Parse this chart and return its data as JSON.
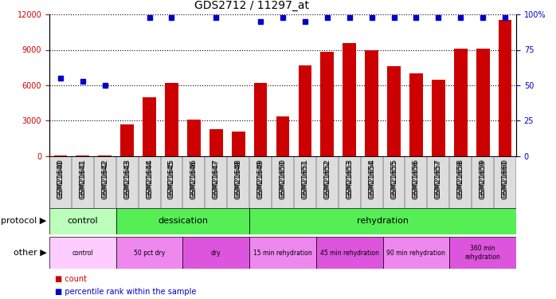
{
  "title": "GDS2712 / 11297_at",
  "samples": [
    "GSM21640",
    "GSM21641",
    "GSM21642",
    "GSM21643",
    "GSM21644",
    "GSM21645",
    "GSM21646",
    "GSM21647",
    "GSM21648",
    "GSM21649",
    "GSM21650",
    "GSM21651",
    "GSM21652",
    "GSM21653",
    "GSM21654",
    "GSM21655",
    "GSM21656",
    "GSM21657",
    "GSM21658",
    "GSM21659",
    "GSM21660"
  ],
  "counts": [
    60,
    80,
    70,
    2700,
    5000,
    6200,
    3100,
    2300,
    2100,
    6200,
    3400,
    7700,
    8800,
    9600,
    9000,
    7600,
    7000,
    6500,
    9100,
    9100,
    11500
  ],
  "pct_x": [
    0,
    1,
    2,
    4,
    5,
    7,
    9,
    10,
    11,
    12,
    13,
    14,
    15,
    16,
    17,
    18,
    19,
    20
  ],
  "pct_y": [
    55,
    53,
    50,
    98,
    98,
    98,
    95,
    98,
    95,
    98,
    98,
    98,
    98,
    98,
    98,
    98,
    98,
    98
  ],
  "bar_color": "#cc0000",
  "dot_color": "#0000cc",
  "ylim_left": [
    0,
    12000
  ],
  "ylim_right": [
    0,
    100
  ],
  "yticks_left": [
    0,
    3000,
    6000,
    9000,
    12000
  ],
  "yticks_right": [
    0,
    25,
    50,
    75,
    100
  ],
  "protocol_groups": [
    {
      "label": "control",
      "start": 0,
      "end": 2,
      "color": "#bbffbb"
    },
    {
      "label": "dessication",
      "start": 3,
      "end": 8,
      "color": "#55ee55"
    },
    {
      "label": "rehydration",
      "start": 9,
      "end": 20,
      "color": "#55ee55"
    }
  ],
  "other_groups": [
    {
      "label": "control",
      "start": 0,
      "end": 2,
      "color": "#ffccff"
    },
    {
      "label": "50 pct dry",
      "start": 3,
      "end": 5,
      "color": "#ee88ee"
    },
    {
      "label": "dry",
      "start": 6,
      "end": 8,
      "color": "#dd55dd"
    },
    {
      "label": "15 min rehydration",
      "start": 9,
      "end": 11,
      "color": "#ee88ee"
    },
    {
      "label": "45 min rehydration",
      "start": 12,
      "end": 14,
      "color": "#dd55dd"
    },
    {
      "label": "90 min rehydration",
      "start": 15,
      "end": 17,
      "color": "#ee88ee"
    },
    {
      "label": "360 min\nrehydration",
      "start": 18,
      "end": 20,
      "color": "#dd55dd"
    }
  ],
  "tick_color_left": "#cc0000",
  "tick_color_right": "#0000cc",
  "title_fontsize": 10,
  "tick_fontsize": 7,
  "label_fontsize": 8,
  "annotation_fontsize": 7
}
